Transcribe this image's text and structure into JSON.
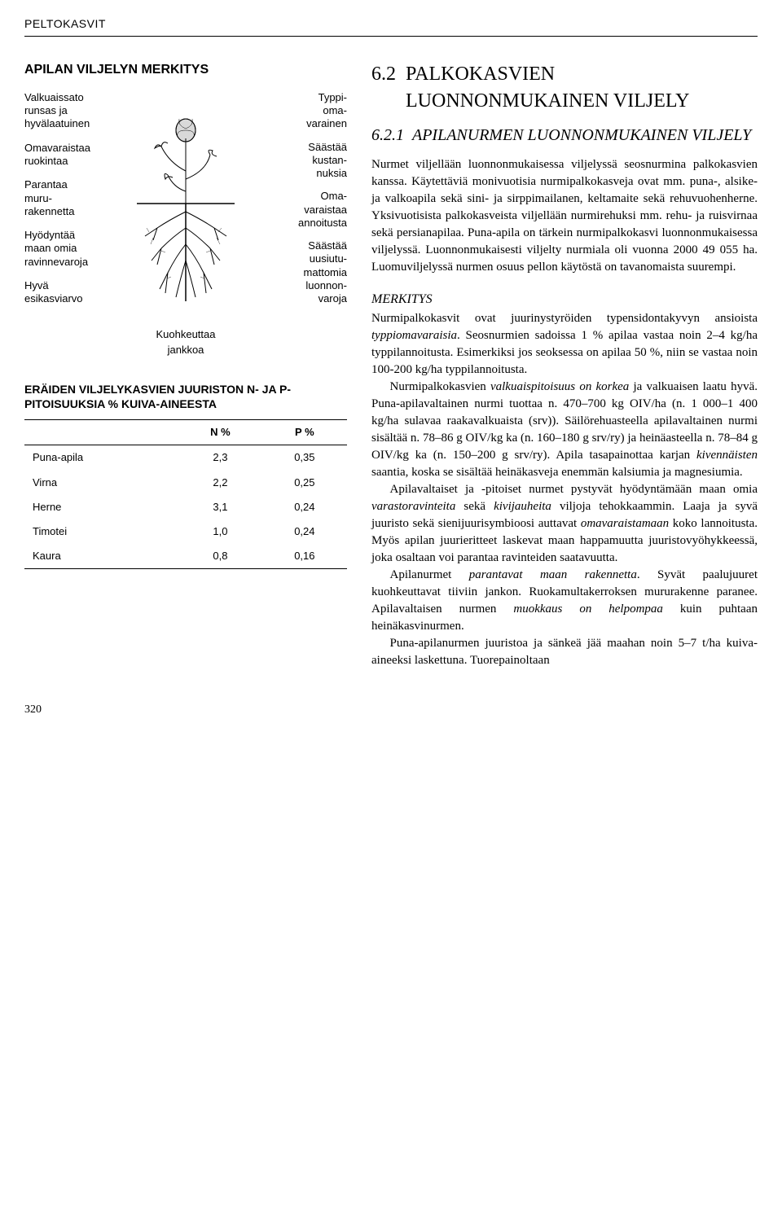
{
  "header": {
    "running_head": "PELTOKASVIT"
  },
  "diagram": {
    "title": "APILAN VILJELYN MERKITYS",
    "left_labels": [
      "Valkuaissato\nrunsas ja\nhyvälaatuinen",
      "Omavaraistaa\nruokintaa",
      "Parantaa\nmuru-\nrakennetta",
      "Hyödyntää\nmaan omia\nravinnevaroja",
      "Hyvä\nesikasviarvo"
    ],
    "right_labels": [
      "Typpi-\noma-\nvarainen",
      "Säästää\nkustan-\nnuksia",
      "Oma-\nvaraistaa\nannoitusta",
      "Säästää\nuusiutu-\nmattomia\nluonnon-\nvaroja"
    ],
    "caption": "Kuohkeuttaa\njankkoa"
  },
  "table": {
    "title": "ERÄIDEN VILJELYKASVIEN JUURISTON N- JA P-PITOISUUKSIA % KUIVA-AINEESTA",
    "columns": [
      "",
      "N %",
      "P %"
    ],
    "rows": [
      [
        "Puna-apila",
        "2,3",
        "0,35"
      ],
      [
        "Virna",
        "2,2",
        "0,25"
      ],
      [
        "Herne",
        "3,1",
        "0,24"
      ],
      [
        "Timotei",
        "1,0",
        "0,24"
      ],
      [
        "Kaura",
        "0,8",
        "0,16"
      ]
    ]
  },
  "main": {
    "h1_num": "6.2",
    "h1_text": "PALKOKASVIEN LUONNONMUKAINEN VILJELY",
    "h2_num": "6.2.1",
    "h2_text": "APILANURMEN LUONNONMUKAINEN VILJELY",
    "intro": "Nurmet viljellään luonnonmukaisessa viljelyssä seosnurmina palkokasvien kanssa. Käytettäviä monivuotisia nurmipalkokasveja ovat mm. puna-, alsike- ja valkoapila sekä sini- ja sirppimailanen, keltamaite sekä rehuvuohenherne. Yksivuotisista palkokasveista viljellään nurmirehuksi mm. rehu- ja ruisvirnaa sekä persianapilaa. Puna-apila on tärkein nurmipalkokasvi luonnonmukaisessa viljelyssä. Luonnonmukaisesti viljelty nurmiala oli vuonna 2000 49 055 ha. Luomuviljelyssä nurmen osuus pellon käytöstä on tavanomaista suurempi.",
    "merkitys_title": "MERKITYS",
    "p1a": "Nurmipalkokasvit ovat juurinystyröiden typensidontakyvyn ansioista ",
    "p1b": "typpiomavaraisia",
    "p1c": ". Seosnurmien sadoissa 1 % apilaa vastaa noin 2–4 kg/ha typpilannoitusta. Esimerkiksi jos seoksessa on apilaa 50 %, niin se vastaa noin 100-200 kg/ha typpilannoitusta.",
    "p2a": "Nurmipalkokasvien ",
    "p2b": "valkuaispitoisuus on korkea",
    "p2c": " ja valkuaisen laatu hyvä. Puna-apilavaltainen nurmi tuottaa n. 470–700 kg OIV/ha (n. 1 000–1 400 kg/ha sulavaa raakavalkuaista (srv)). Säilörehuasteella apilavaltainen nurmi sisältää n. 78–86 g OIV/kg ka (n. 160–180 g srv/ry) ja heinäasteella n. 78–84 g OIV/kg ka (n. 150–200 g srv/ry). Apila tasapainottaa karjan ",
    "p2d": "kivennäisten",
    "p2e": " saantia, koska se sisältää heinäkasveja enemmän kalsiumia ja magnesiumia.",
    "p3a": "Apilavaltaiset ja -pitoiset nurmet pystyvät hyödyntämään maan omia ",
    "p3b": "varastoravinteita",
    "p3c": " sekä ",
    "p3d": "kivijauheita",
    "p3e": " viljoja tehokkaammin. Laaja ja syvä juuristo sekä sienijuurisymbioosi auttavat ",
    "p3f": "omavaraistamaan",
    "p3g": " koko lannoitusta. Myös apilan juurieritteet laskevat maan happamuutta juuristovyöhykkeessä, joka osaltaan voi parantaa ravinteiden saatavuutta.",
    "p4a": "Apilanurmet ",
    "p4b": "parantavat maan rakennetta",
    "p4c": ". Syvät paalujuuret kuohkeuttavat tiiviin jankon. Ruokamultakerroksen mururakenne paranee. Apilavaltaisen nurmen ",
    "p4d": "muokkaus on helpompaa",
    "p4e": " kuin puhtaan heinäkasvinurmen.",
    "p5": "Puna-apilanurmen juuristoa ja sänkeä jää maahan noin 5–7 t/ha kuiva-aineeksi laskettuna. Tuorepainoltaan"
  },
  "page_number": "320"
}
